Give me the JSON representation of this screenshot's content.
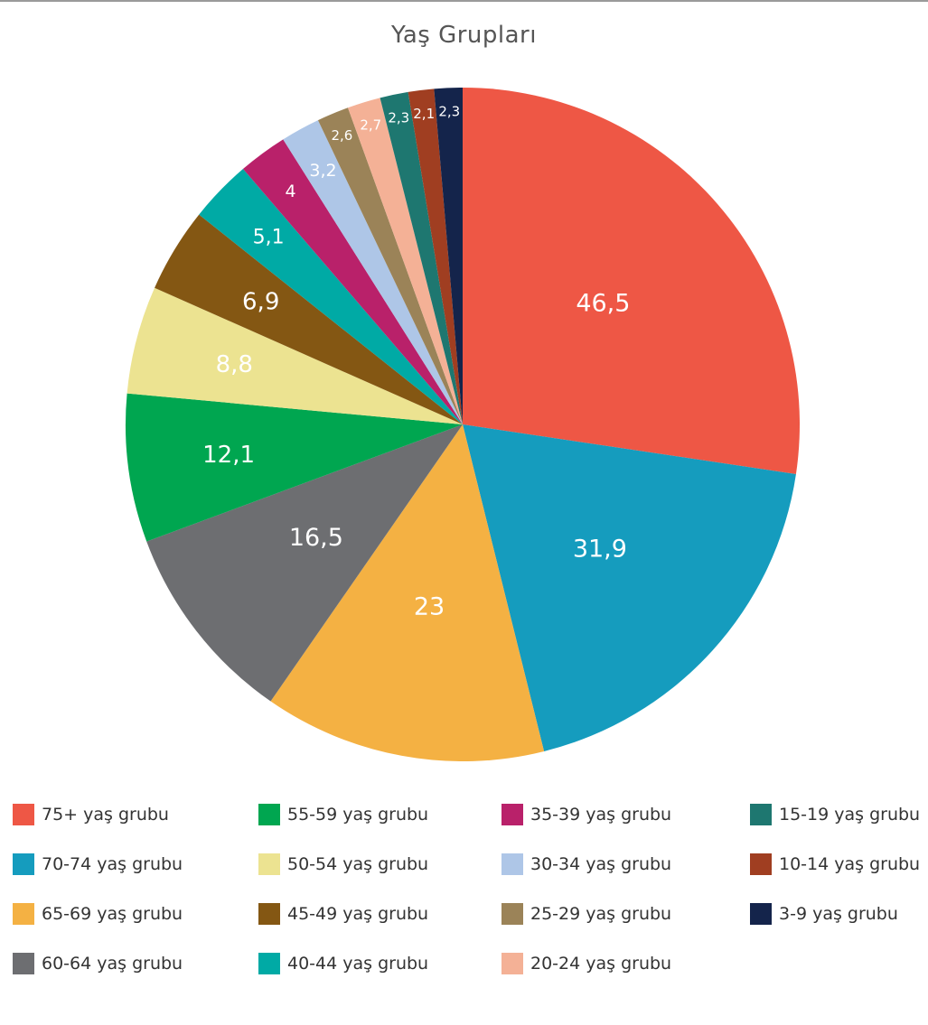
{
  "chart_data": {
    "type": "pie",
    "title": "Yaş Grupları",
    "start": "12 o'clock, clockwise",
    "legend_position": "bottom",
    "slices": [
      {
        "label": "75+ yaş grubu",
        "value_label": "46,5",
        "value": 46.5,
        "color": "#EE5745"
      },
      {
        "label": "70-74 yaş grubu",
        "value_label": "31,9",
        "value": 31.9,
        "color": "#159CBE"
      },
      {
        "label": "65-69 yaş grubu",
        "value_label": "23",
        "value": 23,
        "color": "#F4B143"
      },
      {
        "label": "60-64 yaş grubu",
        "value_label": "16,5",
        "value": 16.5,
        "color": "#6D6E71"
      },
      {
        "label": "55-59 yaş grubu",
        "value_label": "12,1",
        "value": 12.1,
        "color": "#00A650"
      },
      {
        "label": "50-54 yaş grubu",
        "value_label": "8,8",
        "value": 8.8,
        "color": "#ECE391"
      },
      {
        "label": "45-49 yaş grubu",
        "value_label": "6,9",
        "value": 6.9,
        "color": "#845713"
      },
      {
        "label": "40-44 yaş grubu",
        "value_label": "5,1",
        "value": 5.1,
        "color": "#00AAA5"
      },
      {
        "label": "35-39 yaş grubu",
        "value_label": "4",
        "value": 4,
        "color": "#B9216A"
      },
      {
        "label": "30-34 yaş grubu",
        "value_label": "3,2",
        "value": 3.2,
        "color": "#AEC6E7"
      },
      {
        "label": "25-29 yaş grubu",
        "value_label": "2,6",
        "value": 2.6,
        "color": "#9B8358"
      },
      {
        "label": "20-24 yaş grubu",
        "value_label": "2,7",
        "value": 2.7,
        "color": "#F4B196"
      },
      {
        "label": "15-19 yaş grubu",
        "value_label": "2,3",
        "value": 2.3,
        "color": "#1E7770"
      },
      {
        "label": "10-14 yaş grubu",
        "value_label": "2,1",
        "value": 2.1,
        "color": "#A03E21"
      },
      {
        "label": "3-9 yaş grubu",
        "value_label": "2,3",
        "value": 2.3,
        "color": "#14244B"
      }
    ]
  }
}
